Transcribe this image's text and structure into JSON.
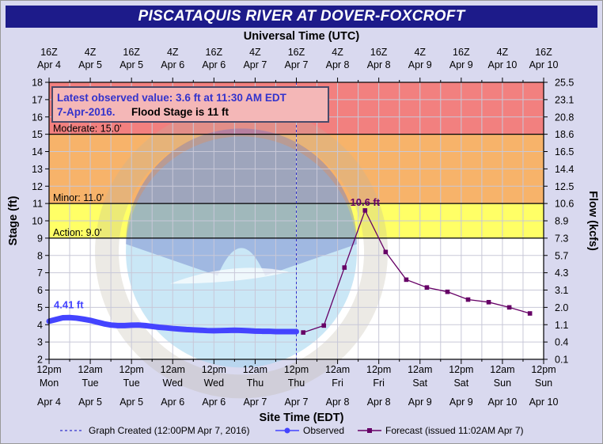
{
  "title": "PISCATAQUIS RIVER AT DOVER-FOXCROFT",
  "chart_data": {
    "type": "line",
    "top_axis_title": "Universal Time (UTC)",
    "top_ticks": [
      {
        "line1": "16Z",
        "line2": "Apr 4"
      },
      {
        "line1": "4Z",
        "line2": "Apr 5"
      },
      {
        "line1": "16Z",
        "line2": "Apr 5"
      },
      {
        "line1": "4Z",
        "line2": "Apr 6"
      },
      {
        "line1": "16Z",
        "line2": "Apr 6"
      },
      {
        "line1": "4Z",
        "line2": "Apr 7"
      },
      {
        "line1": "16Z",
        "line2": "Apr 7"
      },
      {
        "line1": "4Z",
        "line2": "Apr 8"
      },
      {
        "line1": "16Z",
        "line2": "Apr 8"
      },
      {
        "line1": "4Z",
        "line2": "Apr 9"
      },
      {
        "line1": "16Z",
        "line2": "Apr 9"
      },
      {
        "line1": "4Z",
        "line2": "Apr 10"
      },
      {
        "line1": "16Z",
        "line2": "Apr 10"
      }
    ],
    "xlabel": "Site Time (EDT)",
    "bottom_ticks": [
      {
        "line1": "12pm",
        "line2": "Mon",
        "line3": "Apr 4"
      },
      {
        "line1": "12am",
        "line2": "Tue",
        "line3": "Apr 5"
      },
      {
        "line1": "12pm",
        "line2": "Tue",
        "line3": "Apr 5"
      },
      {
        "line1": "12am",
        "line2": "Wed",
        "line3": "Apr 6"
      },
      {
        "line1": "12pm",
        "line2": "Wed",
        "line3": "Apr 6"
      },
      {
        "line1": "12am",
        "line2": "Thu",
        "line3": "Apr 7"
      },
      {
        "line1": "12pm",
        "line2": "Thu",
        "line3": "Apr 7"
      },
      {
        "line1": "12am",
        "line2": "Fri",
        "line3": "Apr 8"
      },
      {
        "line1": "12pm",
        "line2": "Fri",
        "line3": "Apr 8"
      },
      {
        "line1": "12am",
        "line2": "Sat",
        "line3": "Apr 9"
      },
      {
        "line1": "12pm",
        "line2": "Sat",
        "line3": "Apr 9"
      },
      {
        "line1": "12am",
        "line2": "Sun",
        "line3": "Apr 10"
      },
      {
        "line1": "12pm",
        "line2": "Sun",
        "line3": "Apr 10"
      }
    ],
    "ylabel": "Stage (ft)",
    "ylim": [
      2,
      18
    ],
    "y_ticks": [
      2,
      3,
      4,
      5,
      6,
      7,
      8,
      9,
      10,
      11,
      12,
      13,
      14,
      15,
      16,
      17,
      18
    ],
    "y2label": "Flow (kcfs)",
    "y2_ticks": [
      "0.1",
      "0.4",
      "1.1",
      "2.0",
      "3.1",
      "4.3",
      "5.7",
      "7.3",
      "8.9",
      "10.6",
      "12.5",
      "14.4",
      "16.5",
      "18.6",
      "20.8",
      "23.1",
      "25.5"
    ],
    "x_unit": "hours after 12pm Mon Apr 4 (EDT)",
    "xlim": [
      0,
      144
    ],
    "flood_bands": [
      {
        "name": "major",
        "from": 15,
        "to": 18,
        "color": "#f2807f"
      },
      {
        "name": "moderate",
        "from": 11,
        "to": 15,
        "color": "#f7b36a"
      },
      {
        "name": "minor",
        "from": 9,
        "to": 11,
        "color": "#ffff66"
      }
    ],
    "stage_lines": [
      {
        "label": "Moderate: 15.0'",
        "value": 15
      },
      {
        "label": "Minor: 11.0'",
        "value": 11
      },
      {
        "label": "Action: 9.0'",
        "value": 9
      }
    ],
    "info_box": {
      "line1": "Latest observed value: 3.6 ft at 11:30 AM EDT",
      "line2_date": "7-Apr-2016.",
      "line2_flood": "Flood Stage is 11 ft"
    },
    "created_x": 72,
    "series": [
      {
        "name": "Observed",
        "color": "#4444ff",
        "label": "4.41 ft",
        "x": [
          0,
          2,
          4,
          6,
          8,
          10,
          12,
          14,
          16,
          18,
          20,
          22,
          24,
          26,
          28,
          30,
          32,
          34,
          36,
          38,
          40,
          42,
          44,
          46,
          48,
          50,
          52,
          54,
          56,
          58,
          60,
          62,
          64,
          66,
          68,
          70,
          72
        ],
        "y": [
          4.2,
          4.3,
          4.4,
          4.41,
          4.38,
          4.32,
          4.25,
          4.15,
          4.05,
          3.98,
          3.95,
          3.95,
          3.97,
          3.98,
          3.95,
          3.9,
          3.85,
          3.82,
          3.78,
          3.75,
          3.72,
          3.7,
          3.68,
          3.66,
          3.65,
          3.66,
          3.67,
          3.68,
          3.67,
          3.65,
          3.63,
          3.62,
          3.62,
          3.6,
          3.6,
          3.6,
          3.6
        ]
      },
      {
        "name": "Forecast (issued 11:02AM Apr 7)",
        "color": "#660066",
        "label": "10.6 ft",
        "x": [
          74,
          80,
          86,
          92,
          98,
          104,
          110,
          116,
          122,
          128,
          134,
          140
        ],
        "y": [
          3.55,
          3.95,
          7.3,
          10.6,
          8.2,
          6.6,
          6.15,
          5.9,
          5.45,
          5.3,
          5.0,
          4.65
        ]
      }
    ],
    "legend": [
      {
        "key": "created",
        "label": "Graph Created (12:00PM Apr 7, 2016)"
      },
      {
        "key": "observed",
        "label": "Observed"
      },
      {
        "key": "forecast",
        "label": "Forecast (issued 11:02AM Apr 7)"
      }
    ]
  }
}
